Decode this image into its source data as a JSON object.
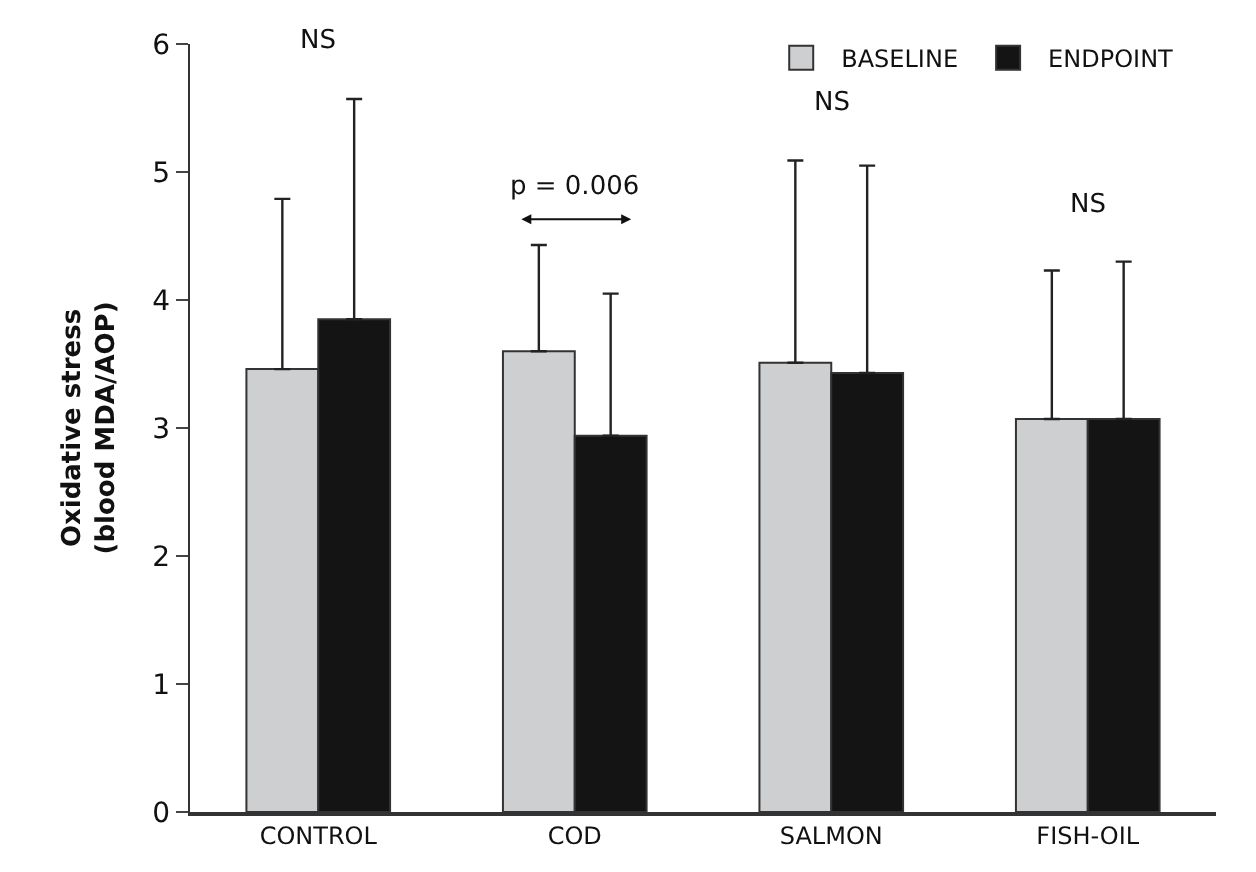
{
  "chart_data": {
    "type": "bar",
    "ylabel": "Oxidative stress\n(blood MDA/AOP)",
    "categories": [
      "CONTROL",
      "COD",
      "SALMON",
      "FISH-OIL"
    ],
    "series": [
      {
        "name": "BASELINE",
        "color": "#cdcfd1",
        "values": [
          3.46,
          3.6,
          3.51,
          3.07
        ],
        "errors": [
          [
            3.46,
            4.79
          ],
          [
            3.6,
            4.43
          ],
          [
            3.51,
            5.09
          ],
          [
            3.07,
            4.23
          ]
        ]
      },
      {
        "name": "ENDPOINT",
        "color": "#141414",
        "values": [
          3.85,
          2.94,
          3.43,
          3.07
        ],
        "errors": [
          [
            3.85,
            5.57
          ],
          [
            2.94,
            4.05
          ],
          [
            3.43,
            5.05
          ],
          [
            3.07,
            4.3
          ]
        ]
      }
    ],
    "ylim": [
      0,
      6
    ],
    "yticks": [
      0,
      1,
      2,
      3,
      4,
      5,
      6
    ],
    "annotations": [
      "NS",
      "p = 0.006",
      "NS",
      "NS"
    ],
    "legend": "top right"
  }
}
